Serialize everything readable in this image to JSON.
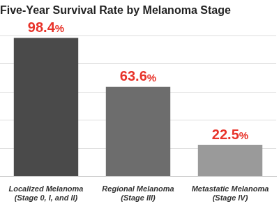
{
  "chart_data": {
    "type": "bar",
    "title": "Five-Year Survival Rate by Melanoma Stage",
    "categories": [
      "Localized Melanoma (Stage 0, I, and II)",
      "Regional Melanoma (Stage III)",
      "Metastatic Melanoma (Stage IV)"
    ],
    "values": [
      98.4,
      63.6,
      22.5
    ],
    "value_labels": [
      "98.4%",
      "63.6%",
      "22.5%"
    ],
    "data_labels": true,
    "colors": [
      "#4a4a4a",
      "#6d6d6d",
      "#9a9a9a"
    ],
    "ylim": [
      0,
      100
    ],
    "yticks": [
      0,
      20,
      40,
      60,
      80,
      100
    ],
    "grid": true,
    "tick_labels": "x"
  }
}
